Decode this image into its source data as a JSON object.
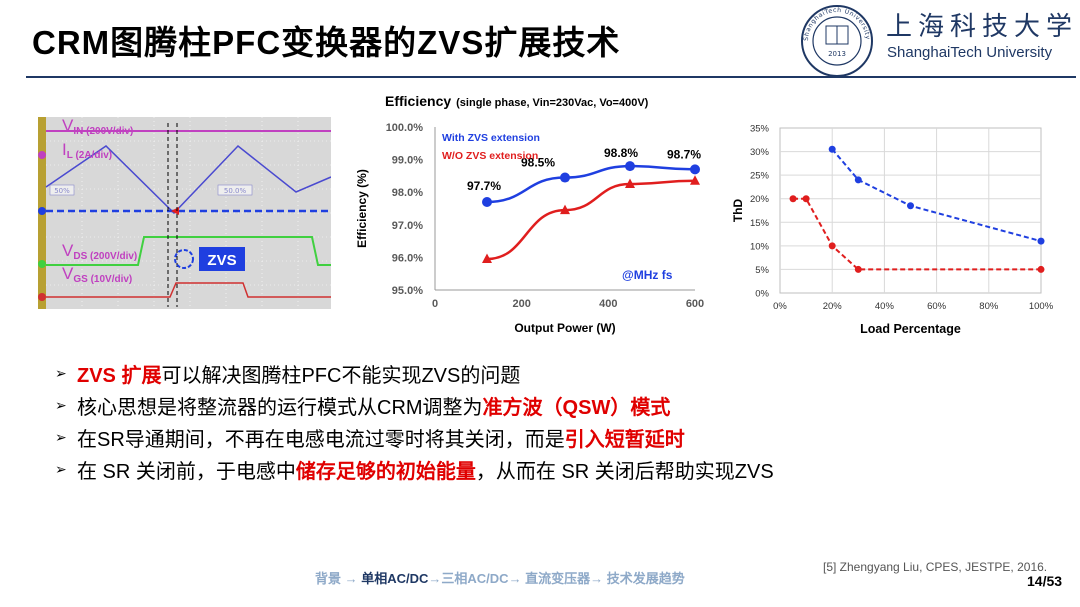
{
  "slide": {
    "title": "CRM图腾柱PFC变换器的ZVS扩展技术"
  },
  "logo": {
    "cn": "上海科技大学",
    "en": "ShanghaiTech University",
    "seal_text": "ShanghaiTech University",
    "seal_center": "2013"
  },
  "colors": {
    "blue": "#1f3fe0",
    "red": "#e01e1e",
    "navy": "#1f3864",
    "bullet_red": "#e00000"
  },
  "scope": {
    "labels": {
      "vin": "IN (200V/div)",
      "vin_prefix": "V",
      "il": "L (2A/div)",
      "il_prefix": "I",
      "vds": "DS (200V/div)",
      "vds_prefix": "V",
      "vgs": "GS (10V/div)",
      "vgs_prefix": "V",
      "zvs": "ZVS",
      "pct_left": "50%",
      "pct_right": "50.0%"
    }
  },
  "chart_data": [
    {
      "type": "line",
      "title": "Efficiency",
      "subtitle": "(single phase, Vin=230Vac, Vo=400V)",
      "xlabel": "Output Power (W)",
      "ylabel": "Efficiency (%)",
      "xlim": [
        0,
        600
      ],
      "ylim": [
        95.0,
        100.0
      ],
      "xticks": [
        "0",
        "200",
        "400",
        "600"
      ],
      "yticks": [
        "95.0%",
        "96.0%",
        "97.0%",
        "98.0%",
        "99.0%",
        "100.0%"
      ],
      "annotation": "@MHz fs",
      "series": [
        {
          "name": "With ZVS extension",
          "color": "#1f3fe0",
          "marker": "circle",
          "x": [
            120,
            300,
            450,
            600
          ],
          "y": [
            97.7,
            98.45,
            98.8,
            98.7
          ],
          "labels": [
            "97.7%",
            "98.5%",
            "98.8%",
            "98.7%"
          ]
        },
        {
          "name": "W/O ZVS extension",
          "color": "#e01e1e",
          "marker": "triangle",
          "x": [
            120,
            300,
            450,
            600
          ],
          "y": [
            95.95,
            97.45,
            98.25,
            98.35
          ]
        }
      ]
    },
    {
      "type": "line",
      "xlabel": "Load Percentage",
      "ylabel": "ThD",
      "xlim": [
        0,
        100
      ],
      "ylim": [
        0,
        35
      ],
      "xticks": [
        "0%",
        "20%",
        "40%",
        "60%",
        "80%",
        "100%"
      ],
      "yticks": [
        "0%",
        "5%",
        "10%",
        "15%",
        "20%",
        "25%",
        "30%",
        "35%"
      ],
      "grid": true,
      "series": [
        {
          "color": "#1f3fe0",
          "style": "dashed",
          "x": [
            20,
            30,
            50,
            100
          ],
          "y": [
            30.5,
            24,
            18.5,
            11
          ]
        },
        {
          "color": "#e01e1e",
          "style": "dashed",
          "x": [
            5,
            10,
            20,
            30,
            100
          ],
          "y": [
            20,
            20,
            10,
            5,
            5
          ]
        }
      ]
    }
  ],
  "bullets": [
    {
      "parts": [
        {
          "text": "ZVS 扩展",
          "red": true
        },
        {
          "text": "可以解决图腾柱PFC不能实现ZVS的问题"
        }
      ]
    },
    {
      "parts": [
        {
          "text": "核心思想是将整流器的运行模式从CRM调整为"
        },
        {
          "text": "准方波（QSW）模式",
          "red": true
        }
      ]
    },
    {
      "parts": [
        {
          "text": "在SR导通期间，不再在电感电流过零时将其关闭，而是"
        },
        {
          "text": "引入短暂延时",
          "red": true
        }
      ]
    },
    {
      "parts": [
        {
          "text": "在 SR 关闭前，于电感中"
        },
        {
          "text": "储存足够的初始能量",
          "red": true
        },
        {
          "text": "，从而在 SR 关闭后帮助实现ZVS"
        }
      ]
    }
  ],
  "footer": {
    "reference": "[5] Zhengyang Liu, CPES, JESTPE, 2016.",
    "page": "14/53",
    "breadcrumb": [
      {
        "text": "背景 → ",
        "current": false
      },
      {
        "text": "单相AC/DC",
        "current": true
      },
      {
        "text": "→三相AC/DC→ 直流变压器→ 技术发展趋势",
        "current": false
      }
    ]
  }
}
